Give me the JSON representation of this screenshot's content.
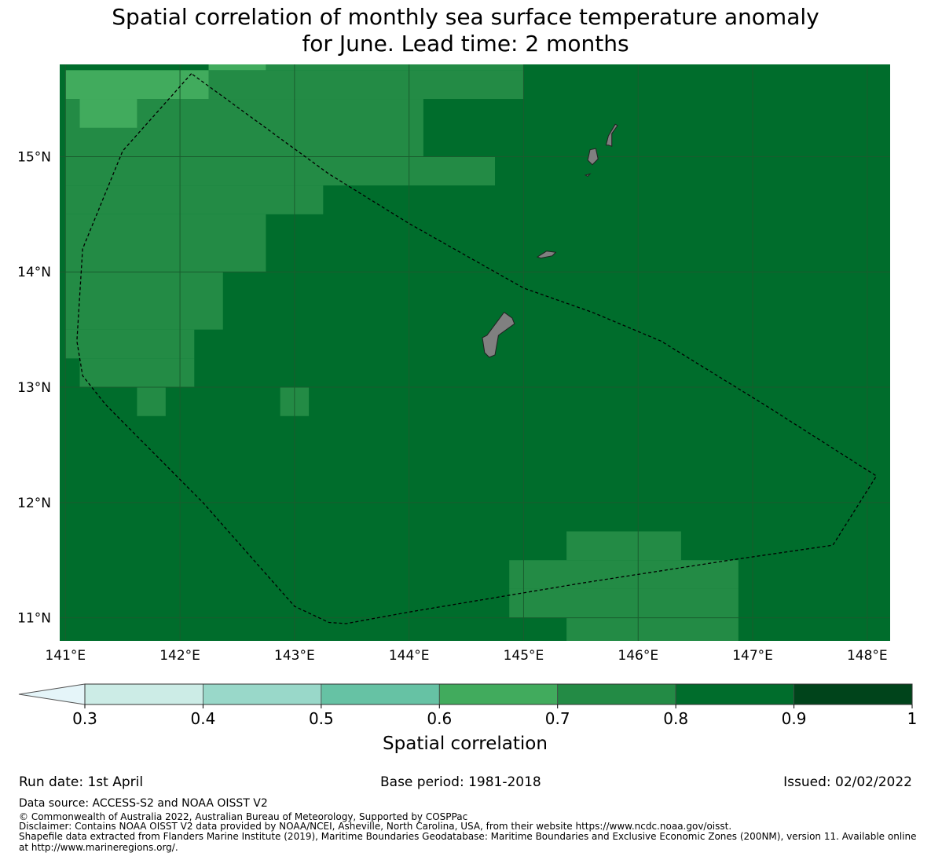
{
  "title": {
    "line1": "Spatial correlation of monthly sea surface temperature anomaly",
    "line2": "for June. Lead time: 2 months"
  },
  "map": {
    "lon_labels": [
      "141°E",
      "142°E",
      "143°E",
      "144°E",
      "145°E",
      "146°E",
      "147°E",
      "148°E"
    ],
    "lat_labels": [
      "15°N",
      "14°N",
      "13°N",
      "12°N",
      "11°N"
    ],
    "extent": {
      "lon_min": 140.95,
      "lon_max": 148.2,
      "lat_min": 10.8,
      "lat_max": 15.8
    },
    "grid_step_deg": 0.25,
    "background_class": "0.8-0.9",
    "cells_0.6_0.7": [
      [
        141.0,
        15.5,
        142.25,
        15.75
      ],
      [
        142.25,
        15.75,
        142.75,
        15.8
      ],
      [
        141.125,
        15.25,
        141.625,
        15.5
      ]
    ],
    "cells_0.7_0.8": [
      [
        142.25,
        15.5,
        145.0,
        15.75
      ],
      [
        142.75,
        15.75,
        145.0,
        15.8
      ],
      [
        141.0,
        15.0,
        144.125,
        15.5
      ],
      [
        141.0,
        14.75,
        144.75,
        15.0
      ],
      [
        141.0,
        14.5,
        143.25,
        14.75
      ],
      [
        141.0,
        14.0,
        142.75,
        14.5
      ],
      [
        141.0,
        13.5,
        142.375,
        14.0
      ],
      [
        141.0,
        13.25,
        142.125,
        13.5
      ],
      [
        141.125,
        13.0,
        142.125,
        13.25
      ],
      [
        141.625,
        12.75,
        141.875,
        13.0
      ],
      [
        142.875,
        12.75,
        143.125,
        13.0
      ],
      [
        145.375,
        11.5,
        146.375,
        11.75
      ],
      [
        144.875,
        11.25,
        146.875,
        11.5
      ],
      [
        144.875,
        11.0,
        146.875,
        11.25
      ],
      [
        145.375,
        10.8,
        146.875,
        11.0
      ]
    ],
    "colors": {
      "0.6-0.7": "#41ab5d",
      "0.7-0.8": "#238b45",
      "0.8-0.9": "#006d2c",
      "land": "#808080",
      "grid": "#1a5c2e"
    },
    "eez_boundary": [
      [
        142.1,
        15.72
      ],
      [
        141.5,
        15.05
      ],
      [
        141.15,
        14.2
      ],
      [
        141.1,
        13.4
      ],
      [
        141.15,
        13.1
      ],
      [
        141.35,
        12.85
      ],
      [
        142.2,
        12.0
      ],
      [
        143.0,
        11.1
      ],
      [
        143.3,
        10.96
      ],
      [
        143.45,
        10.95
      ],
      [
        144.0,
        11.05
      ],
      [
        145.5,
        11.3
      ],
      [
        146.8,
        11.5
      ],
      [
        147.7,
        11.63
      ],
      [
        148.08,
        12.23
      ],
      [
        147.1,
        12.85
      ],
      [
        146.2,
        13.4
      ],
      [
        145.6,
        13.65
      ],
      [
        145.0,
        13.86
      ],
      [
        144.0,
        14.42
      ],
      [
        143.3,
        14.85
      ],
      [
        142.1,
        15.72
      ]
    ],
    "islands": [
      {
        "name": "guam",
        "points": [
          [
            144.68,
            13.45
          ],
          [
            144.83,
            13.65
          ],
          [
            144.9,
            13.6
          ],
          [
            144.92,
            13.55
          ],
          [
            144.78,
            13.45
          ],
          [
            144.75,
            13.28
          ],
          [
            144.7,
            13.26
          ],
          [
            144.66,
            13.3
          ],
          [
            144.64,
            13.43
          ]
        ]
      },
      {
        "name": "rota",
        "points": [
          [
            145.12,
            14.13
          ],
          [
            145.2,
            14.18
          ],
          [
            145.28,
            14.17
          ],
          [
            145.25,
            14.14
          ],
          [
            145.15,
            14.12
          ]
        ]
      },
      {
        "name": "tinian",
        "points": [
          [
            145.6,
            14.93
          ],
          [
            145.65,
            14.98
          ],
          [
            145.63,
            15.07
          ],
          [
            145.58,
            15.06
          ],
          [
            145.56,
            14.97
          ]
        ]
      },
      {
        "name": "saipan",
        "points": [
          [
            145.72,
            15.1
          ],
          [
            145.74,
            15.18
          ],
          [
            145.8,
            15.28
          ],
          [
            145.82,
            15.27
          ],
          [
            145.77,
            15.2
          ],
          [
            145.77,
            15.09
          ],
          [
            145.74,
            15.1
          ]
        ]
      },
      {
        "name": "aguijan",
        "points": [
          [
            145.54,
            14.84
          ],
          [
            145.58,
            14.85
          ],
          [
            145.56,
            14.83
          ]
        ]
      }
    ]
  },
  "colorbar": {
    "label": "Spatial correlation",
    "ticks": [
      "0.3",
      "0.4",
      "0.5",
      "0.6",
      "0.7",
      "0.8",
      "0.9",
      "1"
    ],
    "extend_color": "#e5f5f9",
    "colors": [
      "#ccece6",
      "#99d8c9",
      "#66c2a4",
      "#41ab5d",
      "#238b45",
      "#006d2c",
      "#00441b"
    ]
  },
  "footer": {
    "run_date": "Run date: 1st April",
    "base_period": "Base period: 1981-2018",
    "issued": "Issued: 02/02/2022",
    "data_source": "Data source: ACCESS-S2 and NOAA OISST V2",
    "copyright": "© Commonwealth of Australia 2022, Australian Bureau of Meteorology, Supported by COSPPac",
    "disclaimer": "Disclaimer: Contains NOAA OISST V2 data provided by NOAA/NCEI, Asheville, North Carolina, USA, from their website https://www.ncdc.noaa.gov/oisst.",
    "shapefile_1": "Shapefile data extracted from Flanders Marine Institute (2019), Maritime Boundaries Geodatabase: Maritime Boundaries and Exclusive Economic Zones (200NM), version 11. Available online",
    "shapefile_2": "at http://www.marineregions.org/."
  }
}
